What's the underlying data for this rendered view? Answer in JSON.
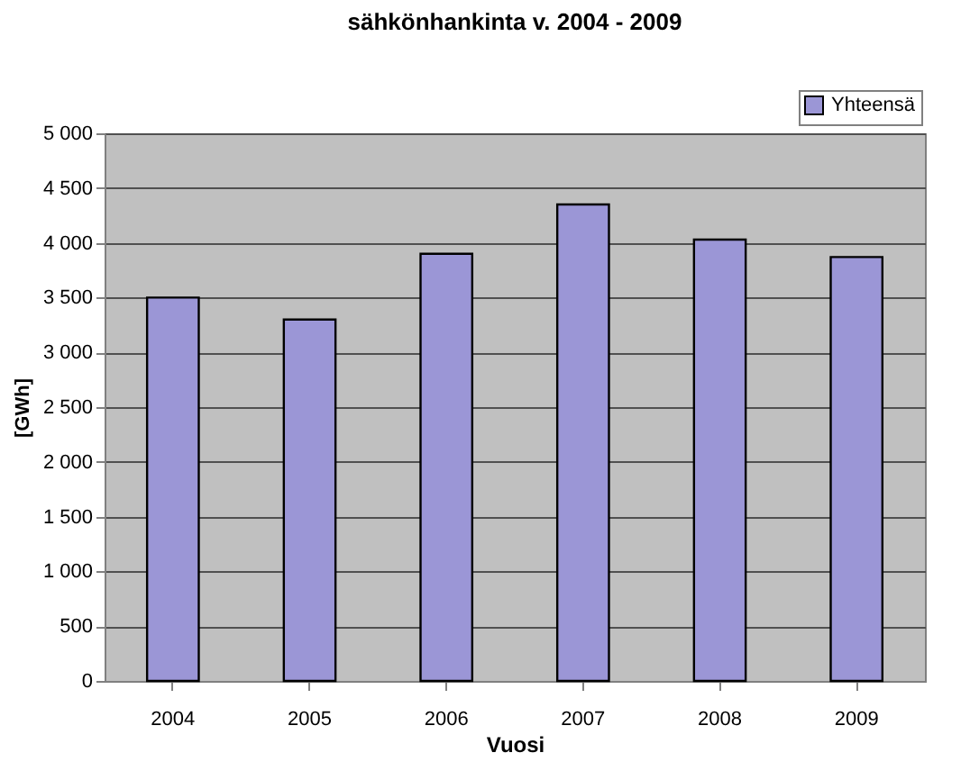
{
  "chart_data": {
    "type": "bar",
    "title": "sähkönhankinta v. 2004 - 2009",
    "xlabel": "Vuosi",
    "ylabel": "[GWh]",
    "categories": [
      "2004",
      "2005",
      "2006",
      "2007",
      "2008",
      "2009"
    ],
    "series": [
      {
        "name": "Yhteensä",
        "color": "#9b96d6",
        "values": [
          3500,
          3300,
          3900,
          4350,
          4030,
          3870
        ]
      }
    ],
    "ylim": [
      0,
      5000
    ],
    "yticks": [
      0,
      500,
      {
        "value": 1000,
        "label": "1 000"
      },
      {
        "value": 1500,
        "label": "1 500"
      },
      {
        "value": 2000,
        "label": "2 000"
      },
      {
        "value": 2500,
        "label": "2 500"
      },
      {
        "value": 3000,
        "label": "3 000"
      },
      {
        "value": 3500,
        "label": "3 500"
      },
      {
        "value": 4000,
        "label": "4 000"
      },
      {
        "value": 4500,
        "label": "4 500"
      },
      {
        "value": 5000,
        "label": "5 000"
      }
    ],
    "grid": "y",
    "legend": "top right"
  }
}
